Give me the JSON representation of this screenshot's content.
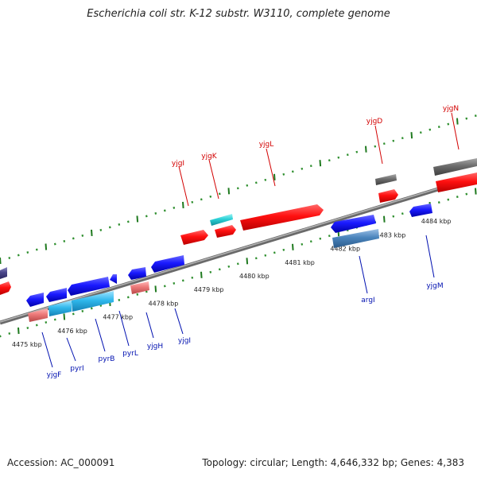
{
  "title": "Escherichia coli str. K-12 substr. W3110, complete genome",
  "accession": "Accession: AC_000091",
  "summary": "Topology: circular; Length: 4,646,332 bp; Genes: 4,383",
  "colors": {
    "backbone": "#8e8e8e",
    "tick_major": "#1f7a1f",
    "tick_minor": "#2f8f2f",
    "forward_label": "#d20000",
    "reverse_label": "#0010b0"
  },
  "scale_labels": [
    "4475 kbp",
    "4476 kbp",
    "4477 kbp",
    "4478 kbp",
    "4479 kbp",
    "4480 kbp",
    "4481 kbp",
    "4482 kbp",
    "4483 kbp",
    "4484 kbp"
  ],
  "genes_forward": [
    "yjgI",
    "yjgK",
    "yjgL",
    "yjgD",
    "yjgN"
  ],
  "genes_reverse": [
    "yjgF",
    "pyrI",
    "pyrB",
    "pyrL",
    "yjgH",
    "yjgI",
    "argI",
    "yjgM"
  ]
}
